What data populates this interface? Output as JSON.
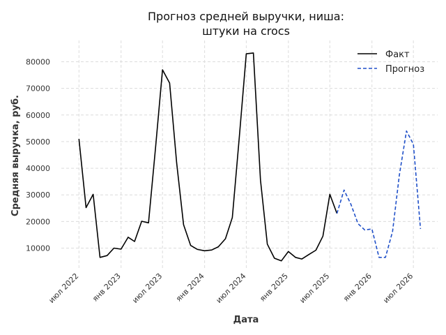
{
  "chart_data": {
    "type": "line",
    "title_lines": [
      "Прогноз средней выручки, ниша:",
      "штуки на crocs"
    ],
    "xlabel": "Дата",
    "ylabel": "Средняя выручка, руб.",
    "x_tick_labels": [
      "июл 2022",
      "янв 2023",
      "июл 2023",
      "янв 2024",
      "июл 2024",
      "янв 2025",
      "июл 2025",
      "янв 2026",
      "июл 2026"
    ],
    "x_tick_dates": [
      "2022-07-01",
      "2023-01-01",
      "2023-07-01",
      "2024-01-01",
      "2024-07-01",
      "2025-01-01",
      "2025-07-01",
      "2026-01-01",
      "2026-07-01"
    ],
    "y_ticks": [
      10000,
      20000,
      30000,
      40000,
      50000,
      60000,
      70000,
      80000
    ],
    "ylim": [
      2000,
      88000
    ],
    "xlim": [
      "2022-04-15",
      "2026-10-15"
    ],
    "grid": true,
    "legend_position": "top-right",
    "colors": {
      "fact": "#000000",
      "forecast": "#1f4fc8"
    },
    "series": [
      {
        "name": "Факт",
        "style": "solid",
        "x": [
          "2022-07-01",
          "2022-08-01",
          "2022-09-01",
          "2022-10-01",
          "2022-11-01",
          "2022-12-01",
          "2023-01-01",
          "2023-02-01",
          "2023-03-01",
          "2023-04-01",
          "2023-05-01",
          "2023-06-01",
          "2023-07-01",
          "2023-08-01",
          "2023-09-01",
          "2023-10-01",
          "2023-11-01",
          "2023-12-01",
          "2024-01-01",
          "2024-02-01",
          "2024-03-01",
          "2024-04-01",
          "2024-05-01",
          "2024-06-01",
          "2024-07-01",
          "2024-08-01",
          "2024-09-01",
          "2024-10-01",
          "2024-11-01",
          "2024-12-01",
          "2025-01-01",
          "2025-02-01",
          "2025-03-01",
          "2025-04-01",
          "2025-05-01",
          "2025-06-01",
          "2025-07-01",
          "2025-08-01"
        ],
        "y": [
          51000,
          25200,
          30200,
          6500,
          7200,
          10000,
          9600,
          14100,
          12500,
          20100,
          19500,
          48000,
          77000,
          72000,
          42000,
          18800,
          11000,
          9500,
          9000,
          9300,
          10500,
          13500,
          21500,
          52000,
          83000,
          83300,
          35500,
          11500,
          6200,
          5200,
          8700,
          6500,
          5900,
          7600,
          9200,
          14500,
          30200,
          23000
        ]
      },
      {
        "name": "Прогноз",
        "style": "dashed",
        "x": [
          "2025-08-01",
          "2025-09-01",
          "2025-10-01",
          "2025-11-01",
          "2025-12-01",
          "2026-01-01",
          "2026-02-01",
          "2026-03-01",
          "2026-04-01",
          "2026-05-01",
          "2026-06-01",
          "2026-07-01",
          "2026-08-01"
        ],
        "y": [
          23000,
          31800,
          26500,
          19200,
          16800,
          17200,
          6500,
          6500,
          16200,
          37500,
          54000,
          49000,
          17200
        ]
      }
    ]
  }
}
